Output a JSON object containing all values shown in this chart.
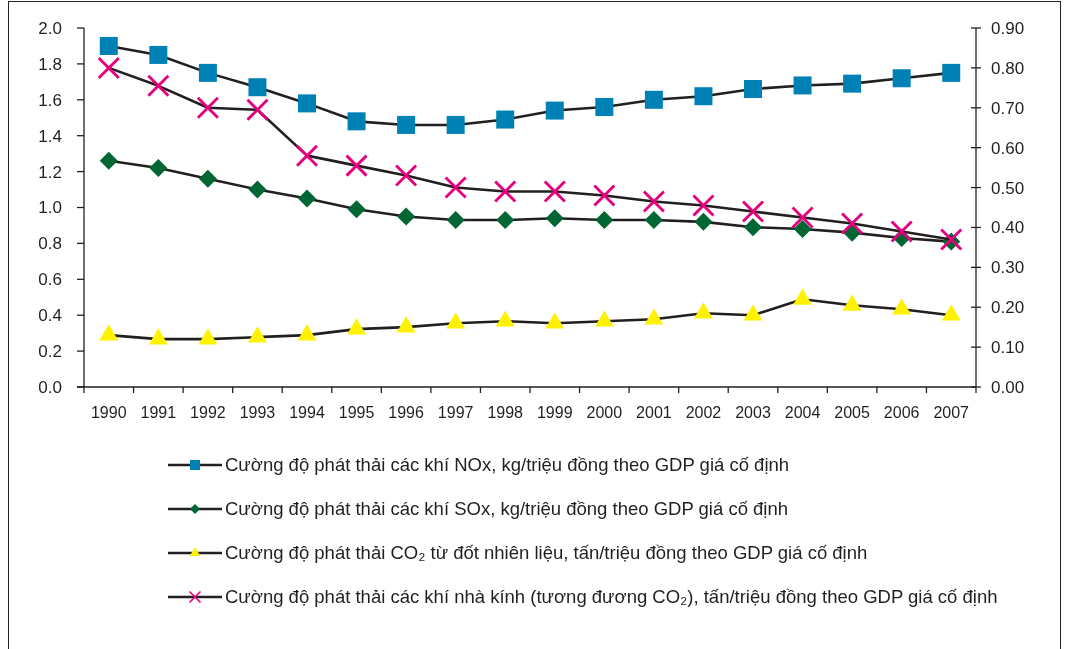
{
  "chart_data": {
    "type": "line",
    "categories": [
      "1990",
      "1991",
      "1992",
      "1993",
      "1994",
      "1995",
      "1996",
      "1997",
      "1998",
      "1999",
      "2000",
      "2001",
      "2002",
      "2003",
      "2004",
      "2005",
      "2006",
      "2007"
    ],
    "series": [
      {
        "name": "Cường độ phát thải các khí NOx, kg/triệu đồng theo GDP giá cố định",
        "color": "#0081b5",
        "marker": "square",
        "values": [
          1.9,
          1.85,
          1.75,
          1.67,
          1.58,
          1.48,
          1.46,
          1.46,
          1.49,
          1.54,
          1.56,
          1.6,
          1.62,
          1.66,
          1.68,
          1.69,
          1.72,
          1.75
        ]
      },
      {
        "name": "Cường độ phát thải các khí SOx, kg/triệu đồng theo GDP giá cố định",
        "color": "#006633",
        "marker": "diamond",
        "values": [
          1.26,
          1.22,
          1.16,
          1.1,
          1.05,
          0.99,
          0.95,
          0.93,
          0.93,
          0.94,
          0.93,
          0.93,
          0.92,
          0.89,
          0.88,
          0.86,
          0.83,
          0.81
        ]
      },
      {
        "name": "Cường độ phát thải CO₂ từ đốt nhiên liệu, tấn/triệu đồng theo GDP giá cố định",
        "color": "#fff200",
        "marker": "triangle",
        "axis": "y2",
        "values": [
          0.13,
          0.12,
          0.12,
          0.125,
          0.13,
          0.145,
          0.15,
          0.16,
          0.165,
          0.16,
          0.165,
          0.17,
          0.185,
          0.18,
          0.22,
          0.205,
          0.195,
          0.18
        ]
      },
      {
        "name": "Cường độ phát thải các khí nhà kính (tương đương CO₂), tấn/triệu đồng theo GDP giá cố định",
        "color": "#e5007e",
        "marker": "cross",
        "axis": "y2",
        "values": [
          0.8,
          0.755,
          0.7,
          0.695,
          0.58,
          0.555,
          0.53,
          0.5,
          0.49,
          0.49,
          0.48,
          0.465,
          0.455,
          0.44,
          0.425,
          0.41,
          0.39,
          0.37
        ]
      }
    ],
    "ylim": [
      0,
      2
    ],
    "yticks": [
      {
        "value": 0,
        "label": "0.0"
      },
      {
        "value": 0.2,
        "label": "0.2"
      },
      {
        "value": 0.4,
        "label": "0.4"
      },
      {
        "value": 0.6,
        "label": "0.6"
      },
      {
        "value": 0.8,
        "label": "0.8"
      },
      {
        "value": 1,
        "label": "1.0"
      },
      {
        "value": 1.2,
        "label": "1.2"
      },
      {
        "value": 1.4,
        "label": "1.4"
      },
      {
        "value": 1.6,
        "label": "1.6"
      },
      {
        "value": 1.8,
        "label": "1.8"
      },
      {
        "value": 2,
        "label": "2.0"
      }
    ],
    "y2lim": [
      0,
      0.9
    ],
    "y2ticks": [
      {
        "value": 0,
        "label": "0.00"
      },
      {
        "value": 0.1,
        "label": "0.10"
      },
      {
        "value": 0.2,
        "label": "0.20"
      },
      {
        "value": 0.3,
        "label": "0.30"
      },
      {
        "value": 0.4,
        "label": "0.40"
      },
      {
        "value": 0.5,
        "label": "0.50"
      },
      {
        "value": 0.6,
        "label": "0.60"
      },
      {
        "value": 0.7,
        "label": "0.70"
      },
      {
        "value": 0.8,
        "label": "0.80"
      },
      {
        "value": 0.9,
        "label": "0.90"
      }
    ],
    "legend": "bottom"
  }
}
